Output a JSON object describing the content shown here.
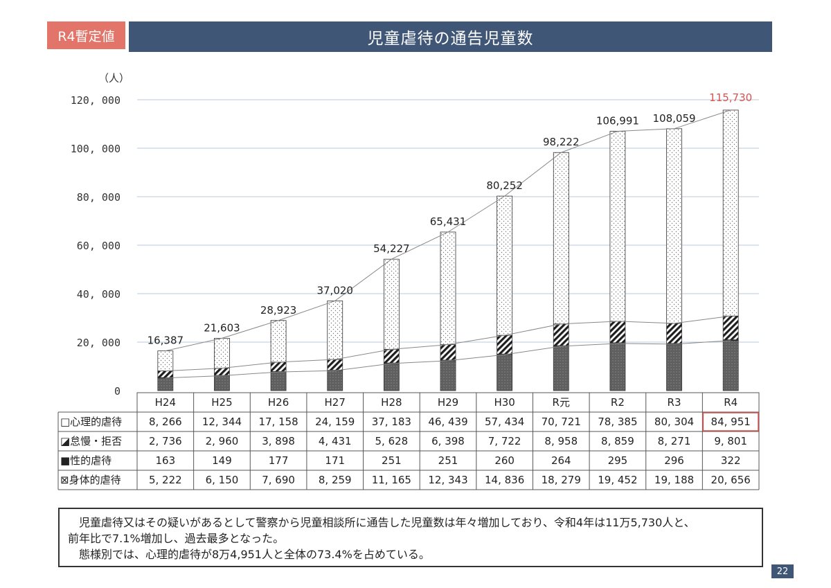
{
  "header": {
    "badge": "R4暫定値",
    "title": "児童虐待の通告児童数"
  },
  "chart_data": {
    "type": "bar",
    "stacked": true,
    "y_unit": "（人）",
    "ylim": [
      0,
      120000
    ],
    "yticks": [
      "0",
      "20, 000",
      "40, 000",
      "60, 000",
      "80, 000",
      "100, 000",
      "120, 000"
    ],
    "grid": true,
    "categories": [
      "H24",
      "H25",
      "H26",
      "H27",
      "H28",
      "H29",
      "H30",
      "R元",
      "R2",
      "R3",
      "R4"
    ],
    "series": [
      {
        "name": "身体的虐待",
        "values": [
          5222,
          6150,
          7690,
          8259,
          11165,
          12343,
          14836,
          18279,
          19452,
          19188,
          20656
        ],
        "labels": [
          "5, 222",
          "6, 150",
          "7, 690",
          "8, 259",
          "11, 165",
          "12, 343",
          "14, 836",
          "18, 279",
          "19, 452",
          "19, 188",
          "20, 656"
        ],
        "marker": "⊠",
        "pattern": "dots-dark"
      },
      {
        "name": "性的虐待",
        "values": [
          163,
          149,
          177,
          171,
          251,
          251,
          260,
          264,
          295,
          296,
          322
        ],
        "labels": [
          "163",
          "149",
          "177",
          "171",
          "251",
          "251",
          "260",
          "264",
          "295",
          "296",
          "322"
        ],
        "marker": "■",
        "pattern": "solid-black"
      },
      {
        "name": "怠慢・拒否",
        "values": [
          2736,
          2960,
          3898,
          4431,
          5628,
          6398,
          7722,
          8958,
          8859,
          8271,
          9801
        ],
        "labels": [
          "2, 736",
          "2, 960",
          "3, 898",
          "4, 431",
          "5, 628",
          "6, 398",
          "7, 722",
          "8, 958",
          "8, 859",
          "8, 271",
          "9, 801"
        ],
        "marker": "◪",
        "pattern": "diagonal-hatch"
      },
      {
        "name": "心理的虐待",
        "values": [
          8266,
          12344,
          17158,
          24159,
          37183,
          46439,
          57434,
          70721,
          78385,
          80304,
          84951
        ],
        "labels": [
          "8, 266",
          "12, 344",
          "17, 158",
          "24, 159",
          "37, 183",
          "46, 439",
          "57, 434",
          "70, 721",
          "78, 385",
          "80, 304",
          "84, 951"
        ],
        "marker": "□",
        "pattern": "dots-light"
      }
    ],
    "totals": [
      16387,
      21603,
      28923,
      37020,
      54227,
      65431,
      80252,
      98222,
      106991,
      108059,
      115730
    ],
    "total_labels": [
      "16,387",
      "21,603",
      "28,923",
      "37,020",
      "54,227",
      "65,431",
      "80,252",
      "98,222",
      "106,991",
      "108,059",
      "115,730"
    ],
    "highlight_color": "#d9534f",
    "table_row_order": [
      "心理的虐待",
      "怠慢・拒否",
      "性的虐待",
      "身体的虐待"
    ]
  },
  "note": {
    "line1": "　児童虐待又はその疑いがあるとして警察から児童相談所に通告した児童数は年々増加しており、令和4年は11万5,730人と、",
    "line2": "前年比で7.1%増加し、過去最多となった。",
    "line3": "　態様別では、心理的虐待が8万4,951人と全体の73.4%を占めている。"
  },
  "page_number": "22"
}
